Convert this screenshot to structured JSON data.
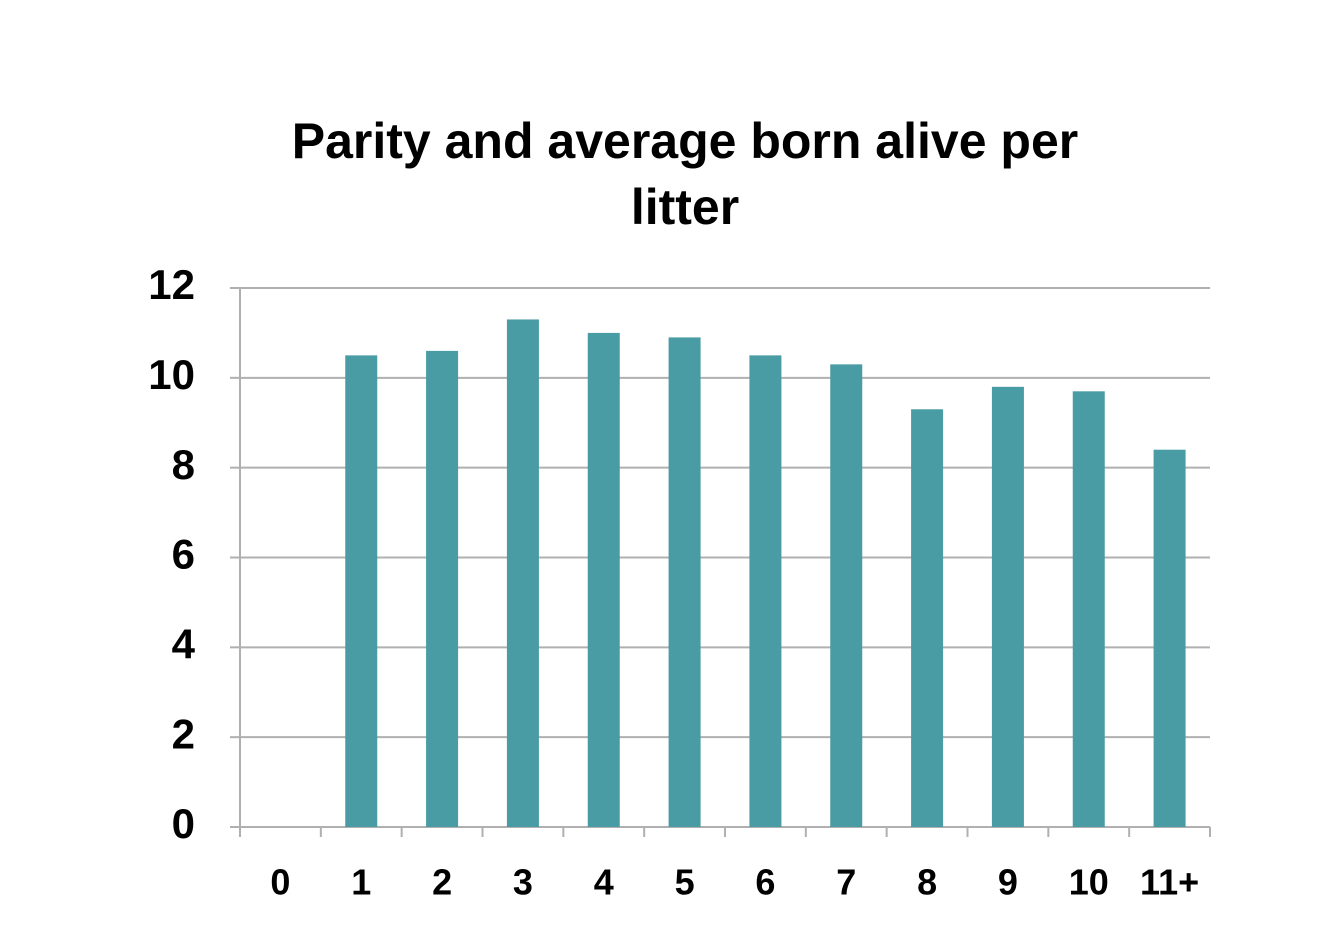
{
  "chart_data": {
    "type": "bar",
    "title": "Parity and average born alive per litter",
    "categories": [
      "0",
      "1",
      "2",
      "3",
      "4",
      "5",
      "6",
      "7",
      "8",
      "9",
      "10",
      "11+"
    ],
    "values": [
      0,
      10.5,
      10.6,
      11.3,
      11.0,
      10.9,
      10.5,
      10.3,
      9.3,
      9.8,
      9.7,
      8.4
    ],
    "color": "#4a9ca4",
    "ylim": [
      0,
      12
    ],
    "yticks": [
      0,
      2,
      4,
      6,
      8,
      10,
      12
    ],
    "grid": true
  }
}
